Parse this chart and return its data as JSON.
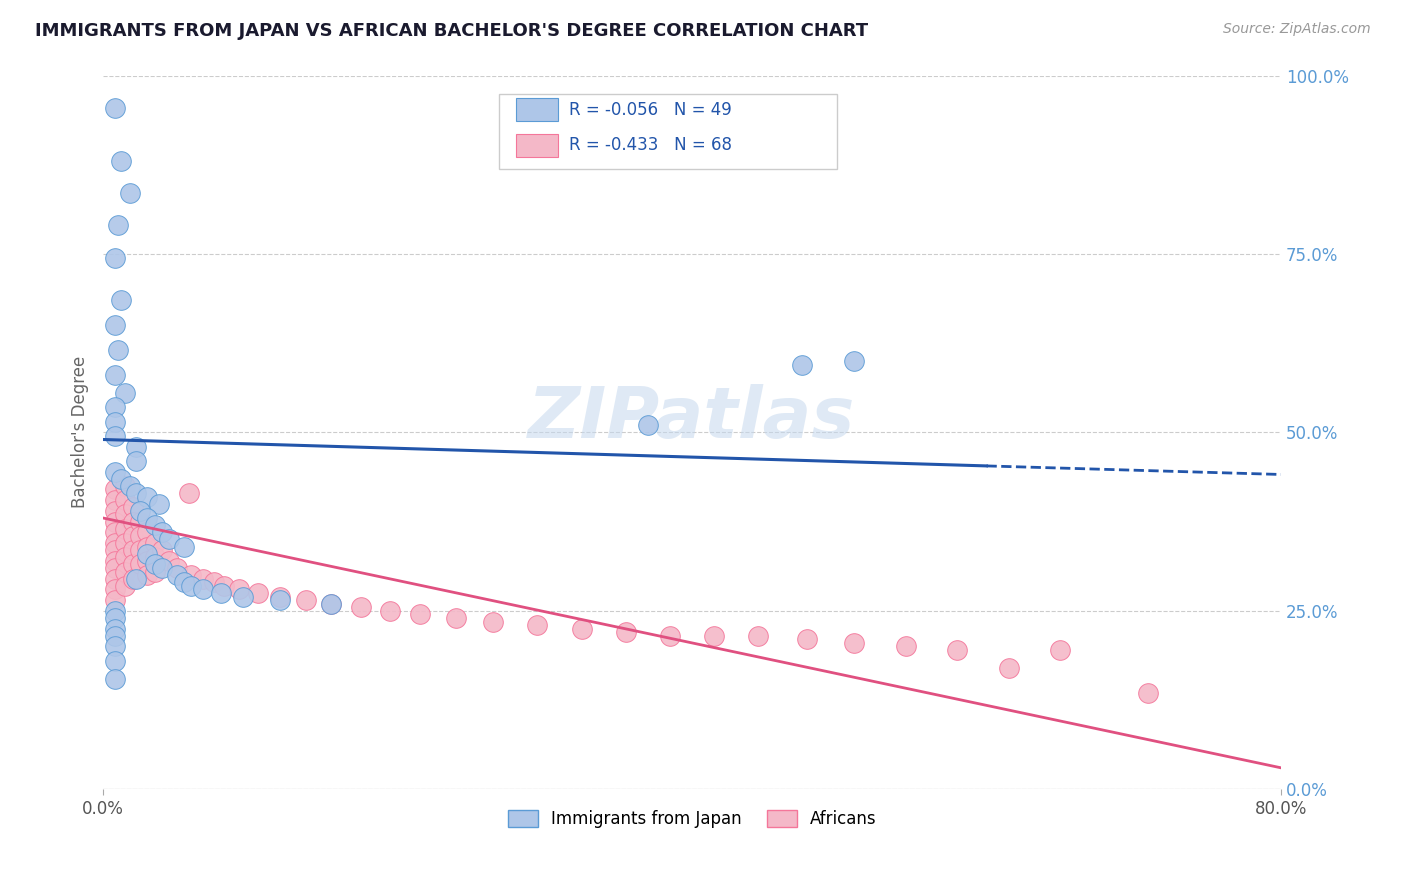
{
  "title": "IMMIGRANTS FROM JAPAN VS AFRICAN BACHELOR'S DEGREE CORRELATION CHART",
  "source_text": "Source: ZipAtlas.com",
  "ylabel": "Bachelor's Degree",
  "ytick_labels": [
    "0.0%",
    "25.0%",
    "50.0%",
    "75.0%",
    "100.0%"
  ],
  "ytick_values": [
    0.0,
    0.25,
    0.5,
    0.75,
    1.0
  ],
  "xlim": [
    0.0,
    0.8
  ],
  "ylim": [
    0.0,
    1.0
  ],
  "legend_entries": [
    {
      "label": "R = -0.056   N = 49",
      "color": "#aec6e8"
    },
    {
      "label": "R = -0.433   N = 68",
      "color": "#f4b8c8"
    }
  ],
  "legend_bottom": [
    "Immigrants from Japan",
    "Africans"
  ],
  "watermark": "ZIPatlas",
  "blue_scatter": [
    [
      0.008,
      0.955
    ],
    [
      0.012,
      0.88
    ],
    [
      0.018,
      0.835
    ],
    [
      0.01,
      0.79
    ],
    [
      0.008,
      0.745
    ],
    [
      0.012,
      0.685
    ],
    [
      0.008,
      0.65
    ],
    [
      0.01,
      0.615
    ],
    [
      0.008,
      0.58
    ],
    [
      0.015,
      0.555
    ],
    [
      0.008,
      0.535
    ],
    [
      0.008,
      0.515
    ],
    [
      0.008,
      0.495
    ],
    [
      0.022,
      0.48
    ],
    [
      0.022,
      0.46
    ],
    [
      0.008,
      0.445
    ],
    [
      0.012,
      0.435
    ],
    [
      0.018,
      0.425
    ],
    [
      0.022,
      0.415
    ],
    [
      0.03,
      0.41
    ],
    [
      0.038,
      0.4
    ],
    [
      0.025,
      0.39
    ],
    [
      0.03,
      0.38
    ],
    [
      0.035,
      0.37
    ],
    [
      0.04,
      0.36
    ],
    [
      0.045,
      0.35
    ],
    [
      0.055,
      0.34
    ],
    [
      0.03,
      0.33
    ],
    [
      0.035,
      0.315
    ],
    [
      0.04,
      0.31
    ],
    [
      0.05,
      0.3
    ],
    [
      0.022,
      0.295
    ],
    [
      0.055,
      0.29
    ],
    [
      0.06,
      0.285
    ],
    [
      0.068,
      0.28
    ],
    [
      0.08,
      0.275
    ],
    [
      0.095,
      0.27
    ],
    [
      0.12,
      0.265
    ],
    [
      0.155,
      0.26
    ],
    [
      0.008,
      0.25
    ],
    [
      0.008,
      0.24
    ],
    [
      0.008,
      0.225
    ],
    [
      0.008,
      0.215
    ],
    [
      0.008,
      0.2
    ],
    [
      0.008,
      0.18
    ],
    [
      0.008,
      0.155
    ],
    [
      0.37,
      0.51
    ],
    [
      0.475,
      0.595
    ],
    [
      0.51,
      0.6
    ]
  ],
  "pink_scatter": [
    [
      0.008,
      0.42
    ],
    [
      0.008,
      0.405
    ],
    [
      0.008,
      0.39
    ],
    [
      0.008,
      0.375
    ],
    [
      0.008,
      0.36
    ],
    [
      0.008,
      0.345
    ],
    [
      0.008,
      0.335
    ],
    [
      0.008,
      0.32
    ],
    [
      0.008,
      0.31
    ],
    [
      0.008,
      0.295
    ],
    [
      0.008,
      0.28
    ],
    [
      0.008,
      0.265
    ],
    [
      0.015,
      0.425
    ],
    [
      0.015,
      0.405
    ],
    [
      0.015,
      0.385
    ],
    [
      0.015,
      0.365
    ],
    [
      0.015,
      0.345
    ],
    [
      0.015,
      0.325
    ],
    [
      0.015,
      0.305
    ],
    [
      0.015,
      0.285
    ],
    [
      0.02,
      0.395
    ],
    [
      0.02,
      0.375
    ],
    [
      0.02,
      0.355
    ],
    [
      0.02,
      0.335
    ],
    [
      0.02,
      0.315
    ],
    [
      0.02,
      0.295
    ],
    [
      0.025,
      0.375
    ],
    [
      0.025,
      0.355
    ],
    [
      0.025,
      0.335
    ],
    [
      0.025,
      0.315
    ],
    [
      0.03,
      0.36
    ],
    [
      0.03,
      0.34
    ],
    [
      0.03,
      0.32
    ],
    [
      0.03,
      0.3
    ],
    [
      0.035,
      0.345
    ],
    [
      0.035,
      0.325
    ],
    [
      0.035,
      0.305
    ],
    [
      0.04,
      0.335
    ],
    [
      0.045,
      0.32
    ],
    [
      0.05,
      0.31
    ],
    [
      0.058,
      0.415
    ],
    [
      0.06,
      0.3
    ],
    [
      0.068,
      0.295
    ],
    [
      0.075,
      0.29
    ],
    [
      0.082,
      0.285
    ],
    [
      0.092,
      0.28
    ],
    [
      0.105,
      0.275
    ],
    [
      0.12,
      0.27
    ],
    [
      0.138,
      0.265
    ],
    [
      0.155,
      0.26
    ],
    [
      0.175,
      0.255
    ],
    [
      0.195,
      0.25
    ],
    [
      0.215,
      0.245
    ],
    [
      0.24,
      0.24
    ],
    [
      0.265,
      0.235
    ],
    [
      0.295,
      0.23
    ],
    [
      0.325,
      0.225
    ],
    [
      0.355,
      0.22
    ],
    [
      0.385,
      0.215
    ],
    [
      0.415,
      0.215
    ],
    [
      0.445,
      0.215
    ],
    [
      0.478,
      0.21
    ],
    [
      0.51,
      0.205
    ],
    [
      0.545,
      0.2
    ],
    [
      0.58,
      0.195
    ],
    [
      0.615,
      0.17
    ],
    [
      0.65,
      0.195
    ],
    [
      0.71,
      0.135
    ]
  ],
  "blue_line_solid": {
    "x": [
      0.0,
      0.6
    ],
    "y": [
      0.49,
      0.453
    ]
  },
  "blue_line_dashed": {
    "x": [
      0.6,
      0.8
    ],
    "y": [
      0.453,
      0.441
    ]
  },
  "pink_line": {
    "x": [
      0.0,
      0.8
    ],
    "y": [
      0.38,
      0.03
    ]
  },
  "blue_scatter_color": "#aec6e8",
  "blue_edge_color": "#5b9bd5",
  "pink_scatter_color": "#f4b8c8",
  "pink_edge_color": "#f4769a",
  "blue_line_color": "#2255aa",
  "pink_line_color": "#e05080",
  "background_color": "#ffffff",
  "grid_color": "#cccccc",
  "title_color": "#1a1a2e",
  "axis_tick_color": "#5b9bd5"
}
